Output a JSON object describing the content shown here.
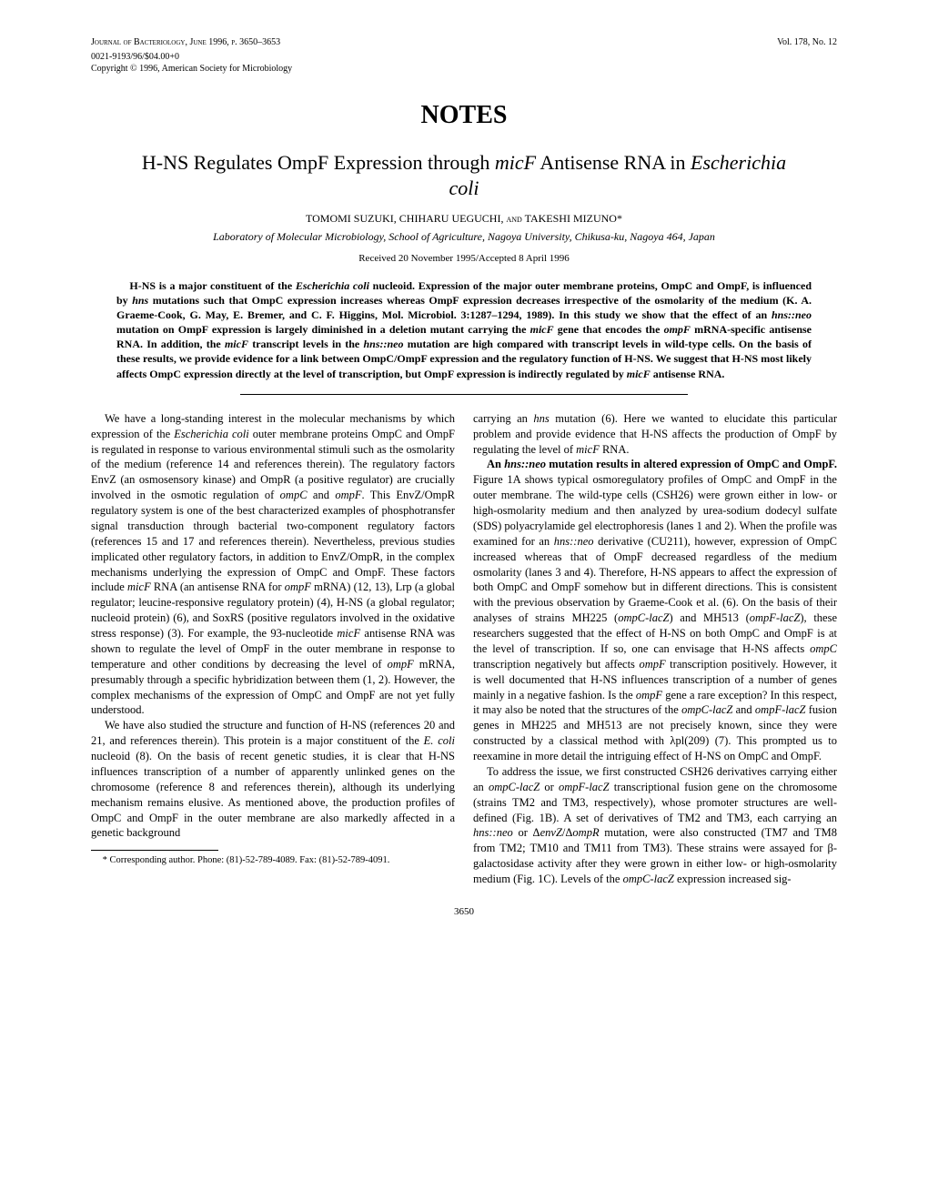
{
  "header": {
    "journal_line": "Journal of Bacteriology, June 1996, p. 3650–3653",
    "vol_no": "Vol. 178, No. 12",
    "issn_line": "0021-9193/96/$04.00+0",
    "copyright_line": "Copyright © 1996, American Society for Microbiology"
  },
  "notes_label": "NOTES",
  "title_html": "H-NS Regulates OmpF Expression through <span class=\"ital\">micF</span> Antisense RNA in <span class=\"ital\">Escherichia coli</span>",
  "authors_html": "TOMOMI SUZUKI, CHIHARU UEGUCHI, <span class=\"sc\">and</span> TAKESHI MIZUNO*",
  "affiliation": "Laboratory of Molecular Microbiology, School of Agriculture, Nagoya University, Chikusa-ku, Nagoya 464, Japan",
  "received": "Received 20 November 1995/Accepted 8 April 1996",
  "abstract_html": "H-NS is a major constituent of the <span class=\"ital\">Escherichia coli</span> nucleoid. Expression of the major outer membrane proteins, OmpC and OmpF, is influenced by <span class=\"ital\">hns</span> mutations such that OmpC expression increases whereas OmpF expression decreases irrespective of the osmolarity of the medium (K. A. Graeme-Cook, G. May, E. Bremer, and C. F. Higgins, Mol. Microbiol. 3:1287–1294, 1989). In this study we show that the effect of an <span class=\"ital\">hns::neo</span> mutation on OmpF expression is largely diminished in a deletion mutant carrying the <span class=\"ital\">micF</span> gene that encodes the <span class=\"ital\">ompF</span> mRNA-specific antisense RNA. In addition, the <span class=\"ital\">micF</span> transcript levels in the <span class=\"ital\">hns::neo</span> mutation are high compared with transcript levels in wild-type cells. On the basis of these results, we provide evidence for a link between OmpC/OmpF expression and the regulatory function of H-NS. We suggest that H-NS most likely affects OmpC expression directly at the level of transcription, but OmpF expression is indirectly regulated by <span class=\"ital\">micF</span> antisense RNA.",
  "body": {
    "p1_html": "We have a long-standing interest in the molecular mechanisms by which expression of the <span class=\"ital\">Escherichia coli</span> outer membrane proteins OmpC and OmpF is regulated in response to various environmental stimuli such as the osmolarity of the medium (reference 14 and references therein). The regulatory factors EnvZ (an osmosensory kinase) and OmpR (a positive regulator) are crucially involved in the osmotic regulation of <span class=\"ital\">ompC</span> and <span class=\"ital\">ompF</span>. This EnvZ/OmpR regulatory system is one of the best characterized examples of phosphotransfer signal transduction through bacterial two-component regulatory factors (references 15 and 17 and references therein). Nevertheless, previous studies implicated other regulatory factors, in addition to EnvZ/OmpR, in the complex mechanisms underlying the expression of OmpC and OmpF. These factors include <span class=\"ital\">micF</span> RNA (an antisense RNA for <span class=\"ital\">ompF</span> mRNA) (12, 13), Lrp (a global regulator; leucine-responsive regulatory protein) (4), H-NS (a global regulator; nucleoid protein) (6), and SoxRS (positive regulators involved in the oxidative stress response) (3). For example, the 93-nucleotide <span class=\"ital\">micF</span> antisense RNA was shown to regulate the level of OmpF in the outer membrane in response to temperature and other conditions by decreasing the level of <span class=\"ital\">ompF</span> mRNA, presumably through a specific hybridization between them (1, 2). However, the complex mechanisms of the expression of OmpC and OmpF are not yet fully understood.",
    "p2_html": "We have also studied the structure and function of H-NS (references 20 and 21, and references therein). This protein is a major constituent of the <span class=\"ital\">E. coli</span> nucleoid (8). On the basis of recent genetic studies, it is clear that H-NS influences transcription of a number of apparently unlinked genes on the chromosome (reference 8 and references therein), although its underlying mechanism remains elusive. As mentioned above, the production profiles of OmpC and OmpF in the outer membrane are also markedly affected in a genetic background",
    "p3_html": "carrying an <span class=\"ital\">hns</span> mutation (6). Here we wanted to elucidate this particular problem and provide evidence that H-NS affects the production of OmpF by regulating the level of <span class=\"ital\">micF</span> RNA.",
    "p4_html": "<b>An <span class=\"ital\">hns::neo</span> mutation results in altered expression of OmpC and OmpF.</b> Figure 1A shows typical osmoregulatory profiles of OmpC and OmpF in the outer membrane. The wild-type cells (CSH26) were grown either in low- or high-osmolarity medium and then analyzed by urea-sodium dodecyl sulfate (SDS) polyacrylamide gel electrophoresis (lanes 1 and 2). When the profile was examined for an <span class=\"ital\">hns::neo</span> derivative (CU211), however, expression of OmpC increased whereas that of OmpF decreased regardless of the medium osmolarity (lanes 3 and 4). Therefore, H-NS appears to affect the expression of both OmpC and OmpF somehow but in different directions. This is consistent with the previous observation by Graeme-Cook et al. (6). On the basis of their analyses of strains MH225 (<span class=\"ital\">ompC-lacZ</span>) and MH513 (<span class=\"ital\">ompF-lacZ</span>), these researchers suggested that the effect of H-NS on both OmpC and OmpF is at the level of transcription. If so, one can envisage that H-NS affects <span class=\"ital\">ompC</span> transcription negatively but affects <span class=\"ital\">ompF</span> transcription positively. However, it is well documented that H-NS influences transcription of a number of genes mainly in a negative fashion. Is the <span class=\"ital\">ompF</span> gene a rare exception? In this respect, it may also be noted that the structures of the <span class=\"ital\">ompC-lacZ</span> and <span class=\"ital\">ompF-lacZ</span> fusion genes in MH225 and MH513 are not precisely known, since they were constructed by a classical method with λpl(209) (7). This prompted us to reexamine in more detail the intriguing effect of H-NS on OmpC and OmpF.",
    "p5_html": "To address the issue, we first constructed CSH26 derivatives carrying either an <span class=\"ital\">ompC-lacZ</span> or <span class=\"ital\">ompF-lacZ</span> transcriptional fusion gene on the chromosome (strains TM2 and TM3, respectively), whose promoter structures are well-defined (Fig. 1B). A set of derivatives of TM2 and TM3, each carrying an <span class=\"ital\">hns::neo</span> or Δ<span class=\"ital\">envZ</span>/Δ<span class=\"ital\">ompR</span> mutation, were also constructed (TM7 and TM8 from TM2; TM10 and TM11 from TM3). These strains were assayed for β-galactosidase activity after they were grown in either low- or high-osmolarity medium (Fig. 1C). Levels of the <span class=\"ital\">ompC-lacZ</span> expression increased sig-"
  },
  "footnote": "* Corresponding author. Phone: (81)-52-789-4089. Fax: (81)-52-789-4091.",
  "page_number": "3650"
}
